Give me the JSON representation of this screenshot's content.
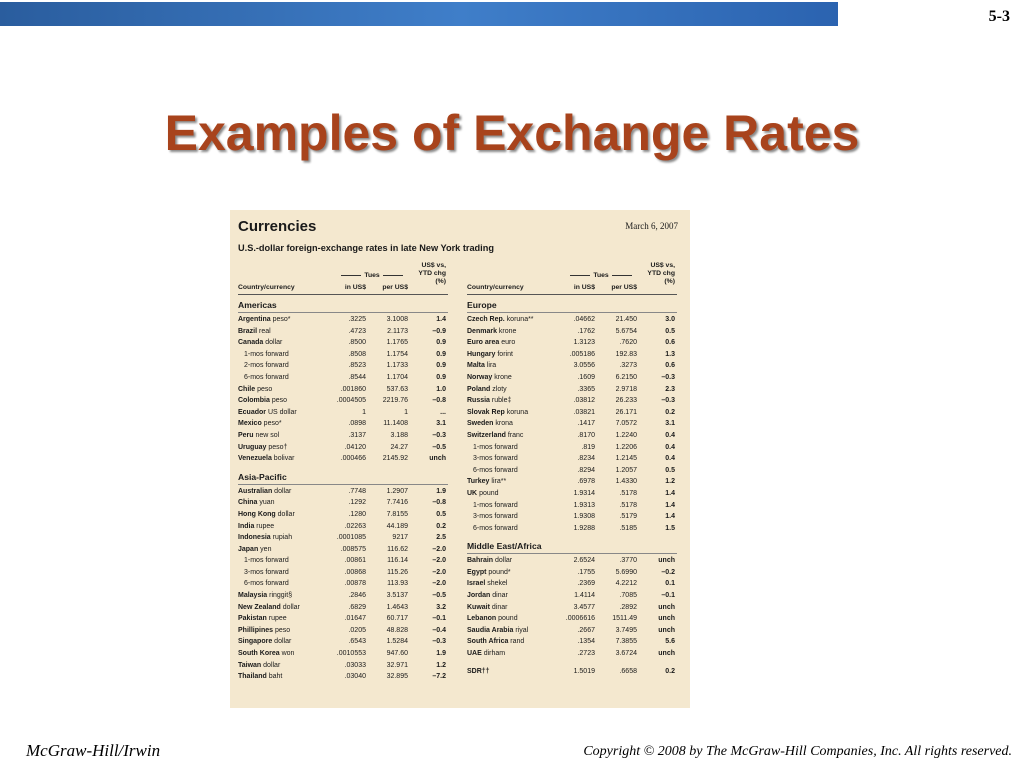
{
  "slide_number": "5-3",
  "title": "Examples of Exchange Rates",
  "table": {
    "title": "Currencies",
    "date": "March 6, 2007",
    "subtitle": "U.S.-dollar foreign-exchange rates in late New York trading",
    "headers": {
      "country": "Country/currency",
      "tues": "Tues",
      "in_usd": "in US$",
      "per_usd": "per US$",
      "ytd": "US$ vs, YTD chg (%)"
    },
    "left_sections": [
      {
        "name": "Americas",
        "rows": [
          {
            "b": "Argentina",
            "n": " peso*",
            "a": ".3225",
            "p": "3.1008",
            "y": "1.4",
            "sub": false
          },
          {
            "b": "Brazil",
            "n": " real",
            "a": ".4723",
            "p": "2.1173",
            "y": "–0.9",
            "sub": false
          },
          {
            "b": "Canada",
            "n": " dollar",
            "a": ".8500",
            "p": "1.1765",
            "y": "0.9",
            "sub": false
          },
          {
            "b": "",
            "n": "1-mos forward",
            "a": ".8508",
            "p": "1.1754",
            "y": "0.9",
            "sub": true
          },
          {
            "b": "",
            "n": "2-mos forward",
            "a": ".8523",
            "p": "1.1733",
            "y": "0.9",
            "sub": true
          },
          {
            "b": "",
            "n": "6-mos forward",
            "a": ".8544",
            "p": "1.1704",
            "y": "0.9",
            "sub": true
          },
          {
            "b": "Chile",
            "n": " peso",
            "a": ".001860",
            "p": "537.63",
            "y": "1.0",
            "sub": false
          },
          {
            "b": "Colombia",
            "n": " peso",
            "a": ".0004505",
            "p": "2219.76",
            "y": "–0.8",
            "sub": false
          },
          {
            "b": "Ecuador",
            "n": " US dollar",
            "a": "1",
            "p": "1",
            "y": "...",
            "sub": false
          },
          {
            "b": "Mexico",
            "n": " peso*",
            "a": ".0898",
            "p": "11.1408",
            "y": "3.1",
            "sub": false
          },
          {
            "b": "Peru",
            "n": " new sol",
            "a": ".3137",
            "p": "3.188",
            "y": "–0.3",
            "sub": false
          },
          {
            "b": "Uruguay",
            "n": " peso†",
            "a": ".04120",
            "p": "24.27",
            "y": "–0.5",
            "sub": false
          },
          {
            "b": "Venezuela",
            "n": " bolivar",
            "a": ".000466",
            "p": "2145.92",
            "y": "unch",
            "sub": false
          }
        ]
      },
      {
        "name": "Asia-Pacific",
        "rows": [
          {
            "b": "Australian",
            "n": " dollar",
            "a": ".7748",
            "p": "1.2907",
            "y": "1.9",
            "sub": false
          },
          {
            "b": "China",
            "n": " yuan",
            "a": ".1292",
            "p": "7.7416",
            "y": "–0.8",
            "sub": false
          },
          {
            "b": "Hong Kong",
            "n": " dollar",
            "a": ".1280",
            "p": "7.8155",
            "y": "0.5",
            "sub": false
          },
          {
            "b": "India",
            "n": " rupee",
            "a": ".02263",
            "p": "44.189",
            "y": "0.2",
            "sub": false
          },
          {
            "b": "Indonesia",
            "n": " rupiah",
            "a": ".0001085",
            "p": "9217",
            "y": "2.5",
            "sub": false
          },
          {
            "b": "Japan",
            "n": " yen",
            "a": ".008575",
            "p": "116.62",
            "y": "–2.0",
            "sub": false
          },
          {
            "b": "",
            "n": "1-mos forward",
            "a": ".00861",
            "p": "116.14",
            "y": "–2.0",
            "sub": true
          },
          {
            "b": "",
            "n": "3-mos forward",
            "a": ".00868",
            "p": "115.26",
            "y": "–2.0",
            "sub": true
          },
          {
            "b": "",
            "n": "6-mos forward",
            "a": ".00878",
            "p": "113.93",
            "y": "–2.0",
            "sub": true
          },
          {
            "b": "Malaysia",
            "n": " ringgit§",
            "a": ".2846",
            "p": "3.5137",
            "y": "–0.5",
            "sub": false
          },
          {
            "b": "New Zealand",
            "n": " dollar",
            "a": ".6829",
            "p": "1.4643",
            "y": "3.2",
            "sub": false
          },
          {
            "b": "Pakistan",
            "n": " rupee",
            "a": ".01647",
            "p": "60.717",
            "y": "–0.1",
            "sub": false
          },
          {
            "b": "Phillipines",
            "n": " peso",
            "a": ".0205",
            "p": "48.828",
            "y": "–0.4",
            "sub": false
          },
          {
            "b": "Singapore",
            "n": " dollar",
            "a": ".6543",
            "p": "1.5284",
            "y": "–0.3",
            "sub": false
          },
          {
            "b": "South Korea",
            "n": " won",
            "a": ".0010553",
            "p": "947.60",
            "y": "1.9",
            "sub": false
          },
          {
            "b": "Taiwan",
            "n": " dollar",
            "a": ".03033",
            "p": "32.971",
            "y": "1.2",
            "sub": false
          },
          {
            "b": "Thailand",
            "n": " baht",
            "a": ".03040",
            "p": "32.895",
            "y": "–7.2",
            "sub": false
          }
        ]
      }
    ],
    "right_sections": [
      {
        "name": "Europe",
        "rows": [
          {
            "b": "Czech Rep.",
            "n": " koruna**",
            "a": ".04662",
            "p": "21.450",
            "y": "3.0",
            "sub": false
          },
          {
            "b": "Denmark",
            "n": " krone",
            "a": ".1762",
            "p": "5.6754",
            "y": "0.5",
            "sub": false
          },
          {
            "b": "Euro area",
            "n": " euro",
            "a": "1.3123",
            "p": ".7620",
            "y": "0.6",
            "sub": false
          },
          {
            "b": "Hungary",
            "n": " forint",
            "a": ".005186",
            "p": "192.83",
            "y": "1.3",
            "sub": false
          },
          {
            "b": "Malta",
            "n": " lira",
            "a": "3.0556",
            "p": ".3273",
            "y": "0.6",
            "sub": false
          },
          {
            "b": "Norway",
            "n": " krone",
            "a": ".1609",
            "p": "6.2150",
            "y": "–0.3",
            "sub": false
          },
          {
            "b": "Poland",
            "n": " zloty",
            "a": ".3365",
            "p": "2.9718",
            "y": "2.3",
            "sub": false
          },
          {
            "b": "Russia",
            "n": " ruble‡",
            "a": ".03812",
            "p": "26.233",
            "y": "–0.3",
            "sub": false
          },
          {
            "b": "Slovak Rep",
            "n": " koruna",
            "a": ".03821",
            "p": "26.171",
            "y": "0.2",
            "sub": false
          },
          {
            "b": "Sweden",
            "n": " krona",
            "a": ".1417",
            "p": "7.0572",
            "y": "3.1",
            "sub": false
          },
          {
            "b": "Switzerland",
            "n": " franc",
            "a": ".8170",
            "p": "1.2240",
            "y": "0.4",
            "sub": false
          },
          {
            "b": "",
            "n": "1-mos forward",
            "a": ".819",
            "p": "1.2206",
            "y": "0.4",
            "sub": true
          },
          {
            "b": "",
            "n": "3-mos forward",
            "a": ".8234",
            "p": "1.2145",
            "y": "0.4",
            "sub": true
          },
          {
            "b": "",
            "n": "6-mos forward",
            "a": ".8294",
            "p": "1.2057",
            "y": "0.5",
            "sub": true
          },
          {
            "b": "Turkey",
            "n": " lira**",
            "a": ".6978",
            "p": "1.4330",
            "y": "1.2",
            "sub": false
          },
          {
            "b": "UK",
            "n": " pound",
            "a": "1.9314",
            "p": ".5178",
            "y": "1.4",
            "sub": false
          },
          {
            "b": "",
            "n": "1-mos forward",
            "a": "1.9313",
            "p": ".5178",
            "y": "1.4",
            "sub": true
          },
          {
            "b": "",
            "n": "3-mos forward",
            "a": "1.9308",
            "p": ".5179",
            "y": "1.4",
            "sub": true
          },
          {
            "b": "",
            "n": "6-mos forward",
            "a": "1.9288",
            "p": ".5185",
            "y": "1.5",
            "sub": true
          }
        ]
      },
      {
        "name": "Middle East/Africa",
        "rows": [
          {
            "b": "Bahrain",
            "n": " dollar",
            "a": "2.6524",
            "p": ".3770",
            "y": "unch",
            "sub": false
          },
          {
            "b": "Egypt",
            "n": " pound*",
            "a": ".1755",
            "p": "5.6990",
            "y": "–0.2",
            "sub": false
          },
          {
            "b": "Israel",
            "n": " shekel",
            "a": ".2369",
            "p": "4.2212",
            "y": "0.1",
            "sub": false
          },
          {
            "b": "Jordan",
            "n": " dinar",
            "a": "1.4114",
            "p": ".7085",
            "y": "–0.1",
            "sub": false
          },
          {
            "b": "Kuwait",
            "n": " dinar",
            "a": "3.4577",
            "p": ".2892",
            "y": "unch",
            "sub": false
          },
          {
            "b": "Lebanon",
            "n": " pound",
            "a": ".0006616",
            "p": "1511.49",
            "y": "unch",
            "sub": false
          },
          {
            "b": "Saudia Arabia",
            "n": " riyal",
            "a": ".2667",
            "p": "3.7495",
            "y": "unch",
            "sub": false
          },
          {
            "b": "South Africa",
            "n": " rand",
            "a": ".1354",
            "p": "7.3855",
            "y": "5.6",
            "sub": false
          },
          {
            "b": "UAE",
            "n": " dirham",
            "a": ".2723",
            "p": "3.6724",
            "y": "unch",
            "sub": false
          },
          {
            "gap": true
          },
          {
            "b": "SDR††",
            "n": "",
            "a": "1.5019",
            "p": ".6658",
            "y": "0.2",
            "sub": false
          }
        ]
      }
    ]
  },
  "footer": {
    "left": "McGraw-Hill/Irwin",
    "right": "Copyright © 2008 by The McGraw-Hill Companies, Inc. All rights reserved."
  }
}
